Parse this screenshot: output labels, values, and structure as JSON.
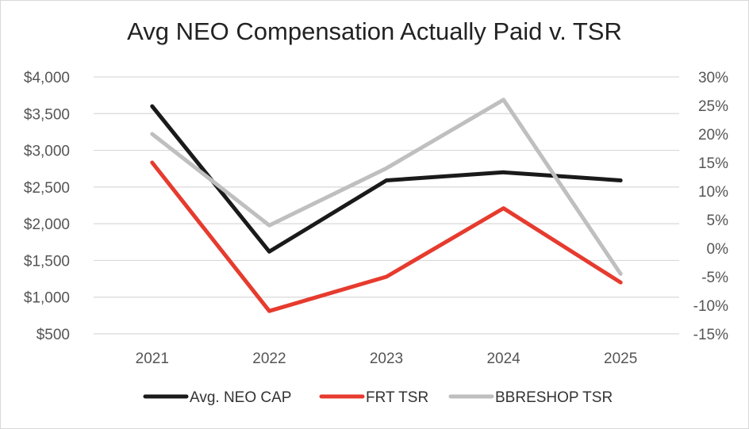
{
  "chart_data": {
    "type": "line",
    "title": "Avg NEO Compensation Actually Paid v. TSR",
    "categories": [
      "2021",
      "2022",
      "2023",
      "2024",
      "2025"
    ],
    "y_left": {
      "ticks": [
        "$4,000",
        "$3,500",
        "$3,000",
        "$2,500",
        "$2,000",
        "$1,500",
        "$1,000",
        "$500"
      ],
      "tick_values": [
        4000,
        3500,
        3000,
        2500,
        2000,
        1500,
        1000,
        500
      ],
      "ylim": [
        500,
        4000
      ]
    },
    "y_right": {
      "ticks": [
        "30%",
        "25%",
        "20%",
        "15%",
        "10%",
        "5%",
        "0%",
        "-5%",
        "-10%",
        "-15%"
      ],
      "tick_values": [
        30,
        25,
        20,
        15,
        10,
        5,
        0,
        -5,
        -10,
        -15
      ],
      "ylim": [
        -15,
        30
      ]
    },
    "series": [
      {
        "name": "Avg. NEO CAP",
        "axis": "left",
        "color": "#1a1a1a",
        "values": [
          3600,
          1620,
          2590,
          2700,
          2590
        ]
      },
      {
        "name": "FRT TSR",
        "axis": "right",
        "color": "#e63b2e",
        "values": [
          15,
          -11,
          -5,
          7,
          -6
        ]
      },
      {
        "name": "BBRESHOP TSR",
        "axis": "right",
        "color": "#bfbfbf",
        "values": [
          20,
          4,
          14,
          26,
          -4.5
        ]
      }
    ],
    "legend_position": "bottom",
    "grid": true
  }
}
